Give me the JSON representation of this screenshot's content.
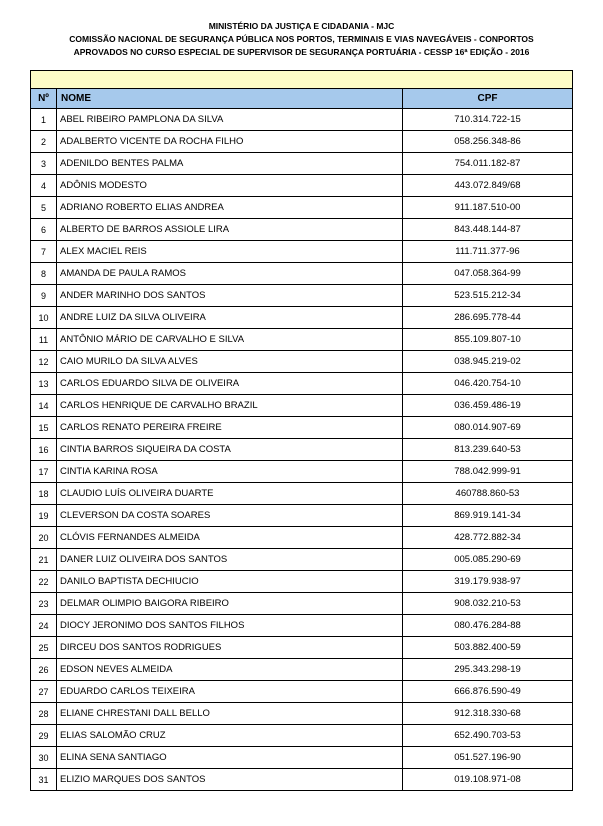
{
  "header": {
    "line1": "MINISTÉRIO DA JUSTIÇA E CIDADANIA - MJC",
    "line2": "COMISSÃO NACIONAL DE SEGURANÇA PÚBLICA NOS PORTOS, TERMINAIS E VIAS NAVEGÁVEIS - CONPORTOS",
    "line3": "APROVADOS NO  CURSO ESPECIAL DE SUPERVISOR DE SEGURANÇA PORTUÁRIA - CESSP 16ª EDIÇÃO - 2016"
  },
  "columns": {
    "num": "Nº",
    "nome": "NOME",
    "cpf": "CPF"
  },
  "colors": {
    "header_bg": "#a6c9ec",
    "band_bg": "#fdfcc7",
    "border": "#000000",
    "text": "#000000",
    "page_bg": "#ffffff"
  },
  "rows": [
    {
      "n": "1",
      "nome": "ABEL RIBEIRO PAMPLONA DA SILVA",
      "cpf": "710.314.722-15"
    },
    {
      "n": "2",
      "nome": "ADALBERTO VICENTE DA ROCHA FILHO",
      "cpf": "058.256.348-86"
    },
    {
      "n": "3",
      "nome": "ADENILDO BENTES PALMA",
      "cpf": "754.011.182-87"
    },
    {
      "n": "4",
      "nome": "ADÔNIS MODESTO",
      "cpf": "443.072.849/68"
    },
    {
      "n": "5",
      "nome": "ADRIANO ROBERTO ELIAS ANDREA",
      "cpf": "911.187.510-00"
    },
    {
      "n": "6",
      "nome": "ALBERTO DE BARROS ASSIOLE LIRA",
      "cpf": "843.448.144-87"
    },
    {
      "n": "7",
      "nome": "ALEX MACIEL REIS",
      "cpf": "111.711.377-96"
    },
    {
      "n": "8",
      "nome": "AMANDA DE PAULA RAMOS",
      "cpf": "047.058.364-99"
    },
    {
      "n": "9",
      "nome": "ANDER MARINHO DOS SANTOS",
      "cpf": "523.515.212-34"
    },
    {
      "n": "10",
      "nome": "ANDRE LUIZ DA SILVA OLIVEIRA",
      "cpf": "286.695.778-44"
    },
    {
      "n": "11",
      "nome": "ANTÔNIO MÁRIO  DE CARVALHO E SILVA",
      "cpf": "855.109.807-10"
    },
    {
      "n": "12",
      "nome": "CAIO MURILO DA SILVA ALVES",
      "cpf": "038.945.219-02"
    },
    {
      "n": "13",
      "nome": "CARLOS EDUARDO SILVA DE OLIVEIRA",
      "cpf": "046.420.754-10"
    },
    {
      "n": "14",
      "nome": "CARLOS HENRIQUE DE CARVALHO BRAZIL",
      "cpf": "036.459.486-19"
    },
    {
      "n": "15",
      "nome": "CARLOS RENATO PEREIRA FREIRE",
      "cpf": "080.014.907-69"
    },
    {
      "n": "16",
      "nome": "CINTIA BARROS SIQUEIRA DA COSTA",
      "cpf": "813.239.640-53"
    },
    {
      "n": "17",
      "nome": "CINTIA KARINA ROSA",
      "cpf": "788.042.999-91"
    },
    {
      "n": "18",
      "nome": "CLAUDIO LUÍS OLIVEIRA DUARTE",
      "cpf": "460788.860-53"
    },
    {
      "n": "19",
      "nome": "CLEVERSON DA COSTA SOARES",
      "cpf": "869.919.141-34"
    },
    {
      "n": "20",
      "nome": "CLÓVIS FERNANDES ALMEIDA",
      "cpf": "428.772.882-34"
    },
    {
      "n": "21",
      "nome": "DANER LUIZ OLIVEIRA DOS SANTOS",
      "cpf": "005.085.290-69"
    },
    {
      "n": "22",
      "nome": "DANILO BAPTISTA DECHIUCIO",
      "cpf": "319.179.938-97"
    },
    {
      "n": "23",
      "nome": "DELMAR OLIMPIO BAIGORA RIBEIRO",
      "cpf": "908.032.210-53"
    },
    {
      "n": "24",
      "nome": "DIOCY JERONIMO DOS SANTOS FILHOS",
      "cpf": "080.476.284-88"
    },
    {
      "n": "25",
      "nome": "DIRCEU DOS SANTOS RODRIGUES",
      "cpf": "503.882.400-59"
    },
    {
      "n": "26",
      "nome": "EDSON NEVES ALMEIDA",
      "cpf": "295.343.298-19"
    },
    {
      "n": "27",
      "nome": "EDUARDO CARLOS TEIXEIRA",
      "cpf": "666.876.590-49"
    },
    {
      "n": "28",
      "nome": "ELIANE CHRESTANI DALL BELLO",
      "cpf": "912.318.330-68"
    },
    {
      "n": "29",
      "nome": "ELIAS SALOMÃO CRUZ",
      "cpf": "652.490.703-53"
    },
    {
      "n": "30",
      "nome": "ELINA SENA SANTIAGO",
      "cpf": "051.527.196-90"
    },
    {
      "n": "31",
      "nome": "ELIZIO MARQUES DOS SANTOS",
      "cpf": "019.108.971-08"
    }
  ]
}
